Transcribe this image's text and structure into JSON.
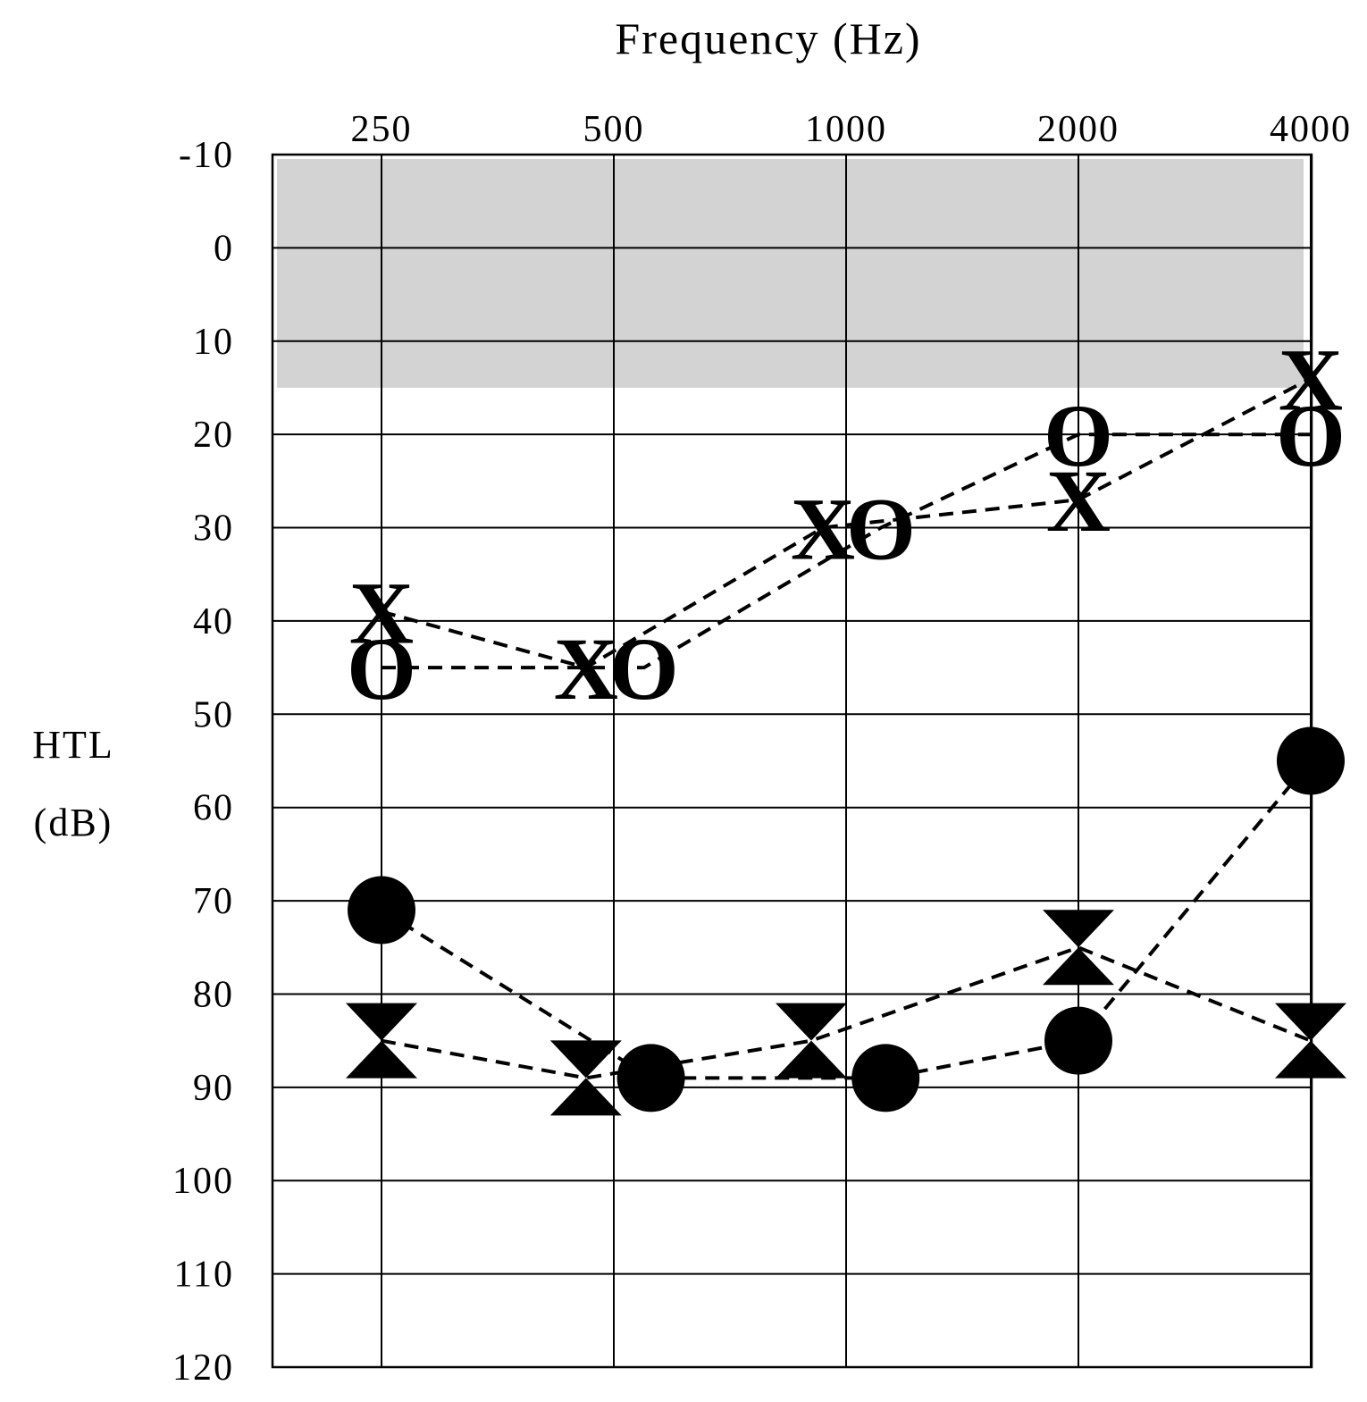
{
  "chart_data": {
    "type": "line",
    "title": "Frequency (Hz)",
    "xlabel": "Frequency (Hz)",
    "ylabel_lines": [
      "HTL",
      "(dB)"
    ],
    "x_categories": [
      "250",
      "500",
      "1000",
      "2000",
      "4000"
    ],
    "y_ticks": [
      "-10",
      "0",
      "10",
      "20",
      "30",
      "40",
      "50",
      "60",
      "70",
      "80",
      "90",
      "100",
      "110",
      "120"
    ],
    "ylim": [
      -10,
      120
    ],
    "y_inverted": true,
    "grid": true,
    "shaded_band": {
      "from": -10,
      "to": 15,
      "color": "#d3d3d3"
    },
    "series": [
      {
        "marker": "O",
        "points": [
          [
            0,
            45
          ],
          [
            1.13,
            45
          ],
          [
            2.15,
            30
          ],
          [
            3.0,
            20
          ],
          [
            4.0,
            20
          ]
        ]
      },
      {
        "marker": "X",
        "points": [
          [
            0,
            39
          ],
          [
            0.88,
            45
          ],
          [
            1.9,
            30
          ],
          [
            3.0,
            27
          ],
          [
            4.0,
            14
          ]
        ]
      },
      {
        "marker": "circle-filled",
        "points": [
          [
            0,
            71
          ],
          [
            1.16,
            89
          ],
          [
            2.17,
            89
          ],
          [
            3.0,
            85
          ],
          [
            4.0,
            55
          ]
        ]
      },
      {
        "marker": "hourglass",
        "points": [
          [
            0,
            85
          ],
          [
            0.88,
            89
          ],
          [
            1.85,
            85
          ],
          [
            3.0,
            75
          ],
          [
            4.0,
            85
          ]
        ]
      }
    ]
  }
}
